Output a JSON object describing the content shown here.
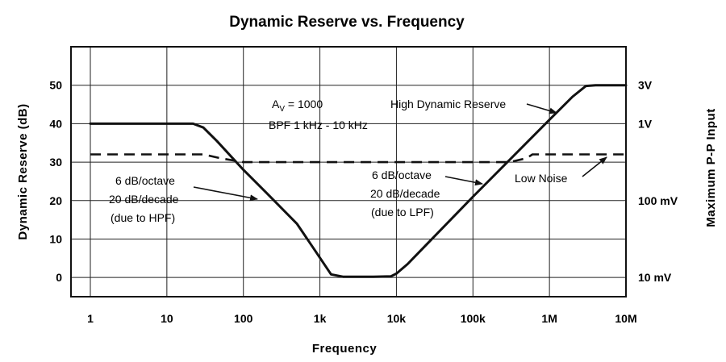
{
  "chart_data": {
    "type": "line",
    "title": "Dynamic Reserve vs. Frequency",
    "xlabel": "Frequency",
    "ylabel": "Dynamic Reserve (dB)",
    "y2label": "Maximum P-P Input",
    "x_scale": "log",
    "xlim": [
      1,
      10000000
    ],
    "ylim": [
      -5,
      60
    ],
    "grid": true,
    "x_ticks": [
      1,
      10,
      100,
      1000,
      10000,
      100000,
      1000000,
      10000000
    ],
    "x_tick_labels": [
      "1",
      "10",
      "100",
      "1k",
      "10k",
      "100k",
      "1M",
      "10M"
    ],
    "y_ticks": [
      0,
      10,
      20,
      30,
      40,
      50
    ],
    "y_tick_labels": [
      "0",
      "10",
      "20",
      "30",
      "40",
      "50"
    ],
    "y2_ticks": [
      {
        "at": 50,
        "label": "3V"
      },
      {
        "at": 40,
        "label": "1V"
      },
      {
        "at": 20,
        "label": "100 mV"
      },
      {
        "at": 0,
        "label": "10 mV"
      }
    ],
    "series": [
      {
        "name": "High Dynamic Reserve",
        "style": "solid",
        "x": [
          1,
          22,
          30,
          45,
          100,
          200,
          500,
          900,
          1400,
          2000,
          5000,
          8500,
          10000,
          14000,
          100000,
          1000000,
          2000000,
          3000000,
          4000000,
          10000000
        ],
        "y": [
          40,
          40,
          39,
          35.5,
          28,
          22,
          14,
          6.5,
          0.8,
          0.2,
          0.2,
          0.3,
          1,
          3.5,
          21,
          41,
          47,
          49.8,
          50,
          50
        ]
      },
      {
        "name": "Low Noise",
        "style": "dashed",
        "x": [
          1,
          30,
          50,
          100,
          300000,
          500000,
          600000,
          1000000,
          10000000
        ],
        "y": [
          32,
          32,
          31,
          30,
          30,
          31,
          32,
          32,
          32
        ]
      }
    ],
    "annotations": {
      "av_prefix": "A",
      "av_sub": "V",
      "av_suffix": " = 1000",
      "bpf": "BPF 1 kHz - 10 kHz",
      "hpf_lines": [
        "6 dB/octave",
        "20 dB/decade",
        "(due to HPF)"
      ],
      "lpf_lines": [
        "6 dB/octave",
        "20 dB/decade",
        "(due to LPF)"
      ],
      "high_label": "High Dynamic Reserve",
      "low_label": "Low Noise"
    }
  }
}
